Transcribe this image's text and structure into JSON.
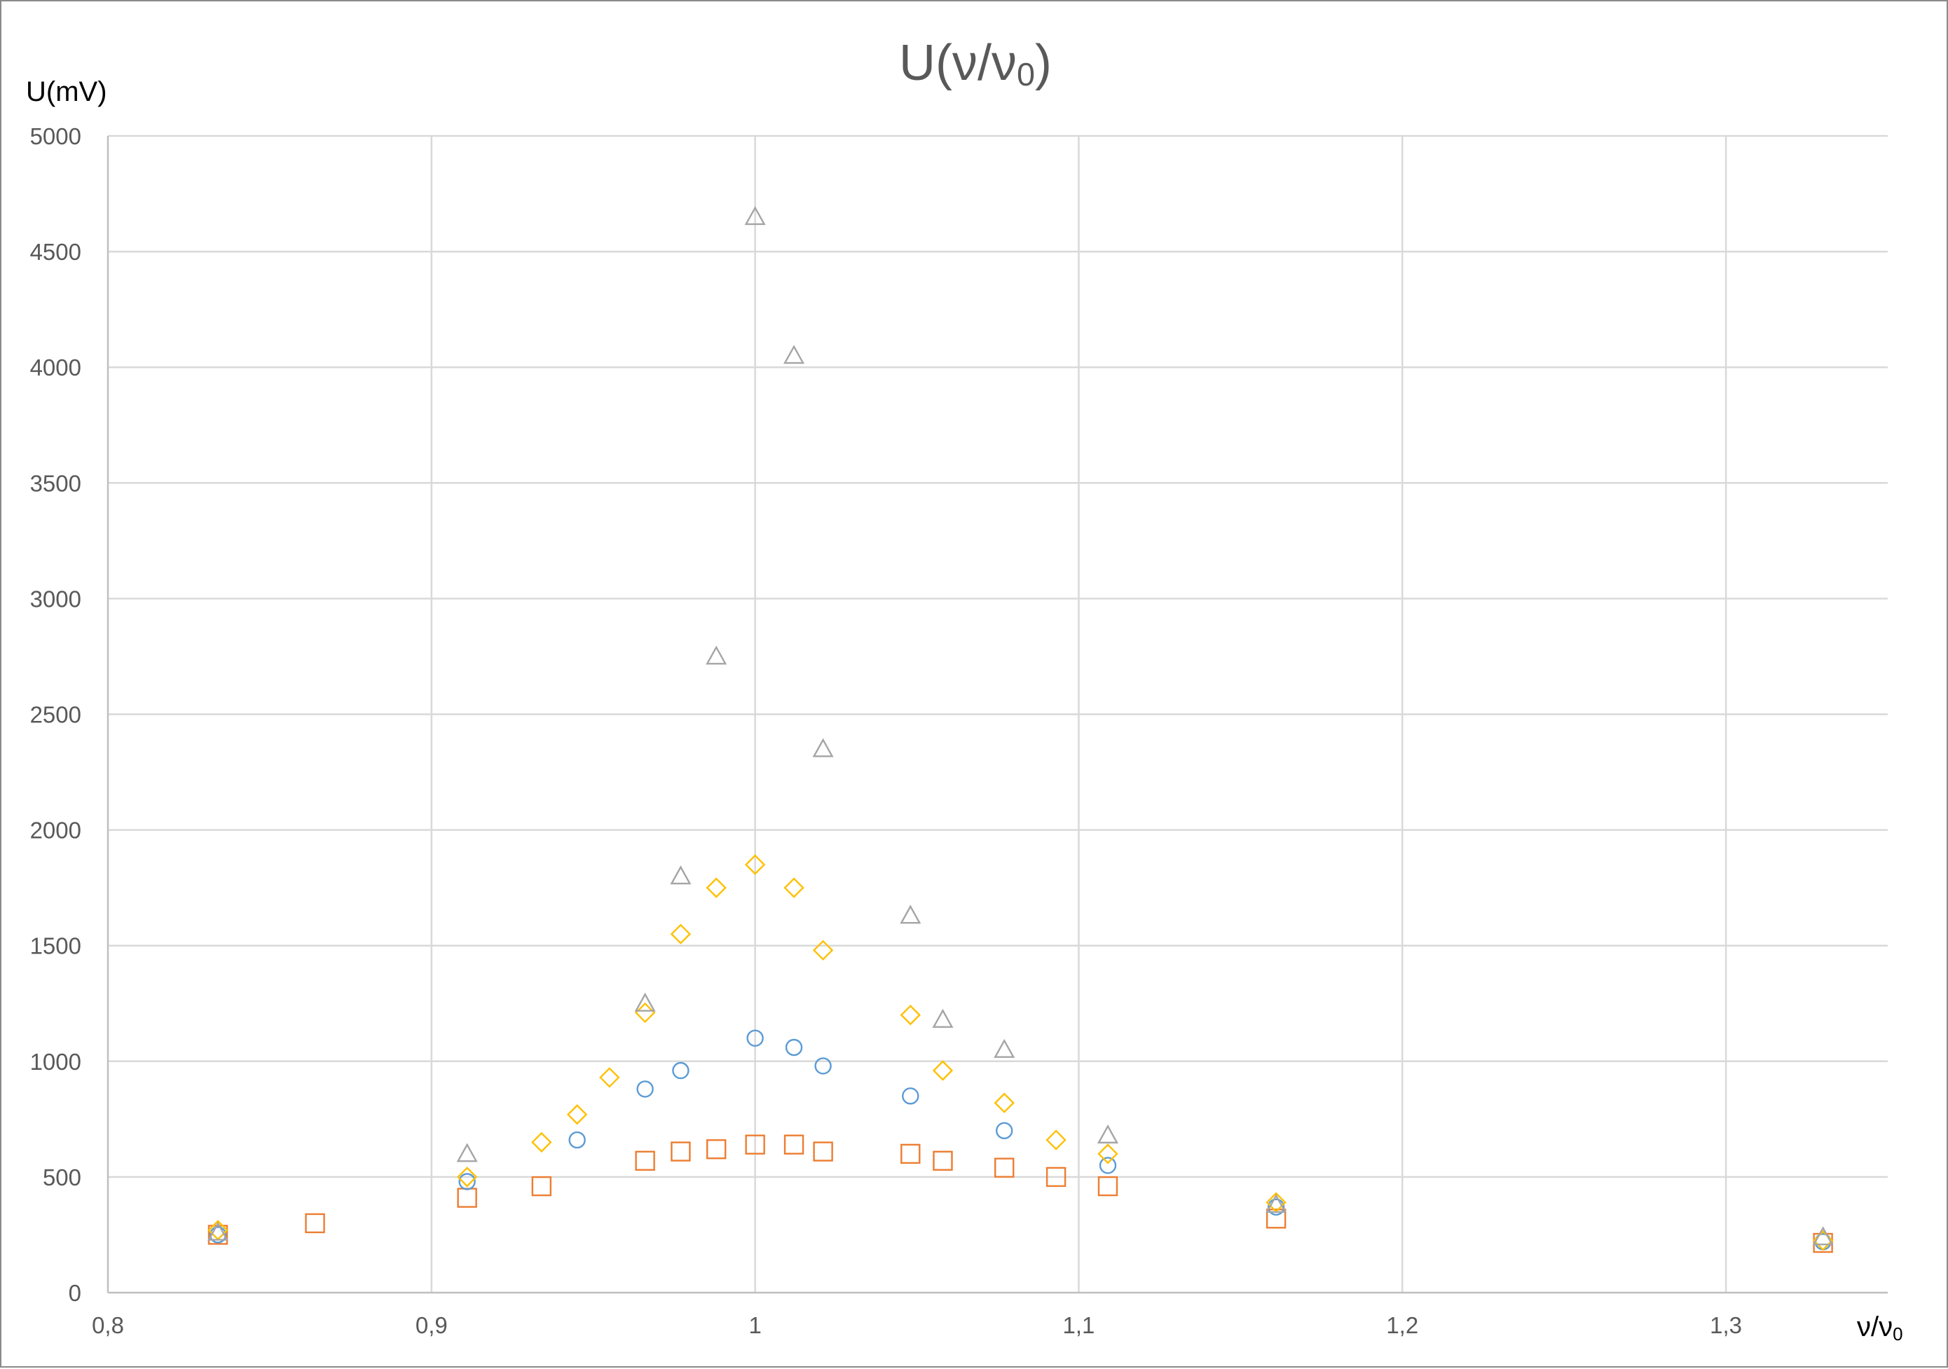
{
  "chart_data": {
    "type": "scatter",
    "title": "U(ν/ν",
    "title_subscript": "0",
    "title_suffix": ")",
    "xlabel": "ν/ν",
    "xlabel_subscript": "0",
    "ylabel": "U(mV)",
    "xlim": [
      0.8,
      1.35
    ],
    "ylim": [
      0,
      5000
    ],
    "x_ticks": [
      0.8,
      0.9,
      1.0,
      1.1,
      1.2,
      1.3
    ],
    "x_tick_labels": [
      "0,8",
      "0,9",
      "1",
      "1,1",
      "1,2",
      "1,3"
    ],
    "y_ticks": [
      0,
      500,
      1000,
      1500,
      2000,
      2500,
      3000,
      3500,
      4000,
      4500,
      5000
    ],
    "y_tick_labels": [
      "0",
      "500",
      "1000",
      "1500",
      "2000",
      "2500",
      "3000",
      "3500",
      "4000",
      "4500",
      "5000"
    ],
    "grid": true,
    "legend": "none",
    "series": [
      {
        "marker": "square",
        "color": "#ED7D31",
        "points": [
          [
            0.834,
            250
          ],
          [
            0.864,
            300
          ],
          [
            0.911,
            410
          ],
          [
            0.934,
            460
          ],
          [
            0.966,
            570
          ],
          [
            0.977,
            610
          ],
          [
            0.988,
            620
          ],
          [
            1.0,
            640
          ],
          [
            1.012,
            640
          ],
          [
            1.021,
            610
          ],
          [
            1.048,
            600
          ],
          [
            1.058,
            570
          ],
          [
            1.077,
            540
          ],
          [
            1.093,
            500
          ],
          [
            1.109,
            460
          ],
          [
            1.161,
            320
          ],
          [
            1.33,
            215
          ]
        ]
      },
      {
        "marker": "circle",
        "color": "#5B9BD5",
        "points": [
          [
            0.834,
            250
          ],
          [
            0.911,
            480
          ],
          [
            0.945,
            660
          ],
          [
            0.966,
            880
          ],
          [
            0.977,
            960
          ],
          [
            1.0,
            1100
          ],
          [
            1.012,
            1060
          ],
          [
            1.021,
            980
          ],
          [
            1.048,
            850
          ],
          [
            1.077,
            700
          ],
          [
            1.109,
            550
          ],
          [
            1.161,
            370
          ],
          [
            1.33,
            220
          ]
        ]
      },
      {
        "marker": "diamond",
        "color": "#FFC000",
        "points": [
          [
            0.834,
            270
          ],
          [
            0.911,
            500
          ],
          [
            0.934,
            650
          ],
          [
            0.945,
            770
          ],
          [
            0.955,
            930
          ],
          [
            0.966,
            1210
          ],
          [
            0.977,
            1550
          ],
          [
            0.988,
            1750
          ],
          [
            1.0,
            1850
          ],
          [
            1.012,
            1750
          ],
          [
            1.021,
            1480
          ],
          [
            1.048,
            1200
          ],
          [
            1.058,
            960
          ],
          [
            1.077,
            820
          ],
          [
            1.093,
            660
          ],
          [
            1.109,
            600
          ],
          [
            1.161,
            390
          ],
          [
            1.33,
            225
          ]
        ]
      },
      {
        "marker": "triangle",
        "color": "#A5A5A5",
        "points": [
          [
            0.834,
            260
          ],
          [
            0.911,
            600
          ],
          [
            0.966,
            1250
          ],
          [
            0.977,
            1800
          ],
          [
            0.988,
            2750
          ],
          [
            1.0,
            4650
          ],
          [
            1.012,
            4050
          ],
          [
            1.021,
            2350
          ],
          [
            1.048,
            1630
          ],
          [
            1.058,
            1180
          ],
          [
            1.077,
            1050
          ],
          [
            1.109,
            680
          ],
          [
            1.161,
            380
          ],
          [
            1.33,
            240
          ]
        ]
      }
    ]
  }
}
